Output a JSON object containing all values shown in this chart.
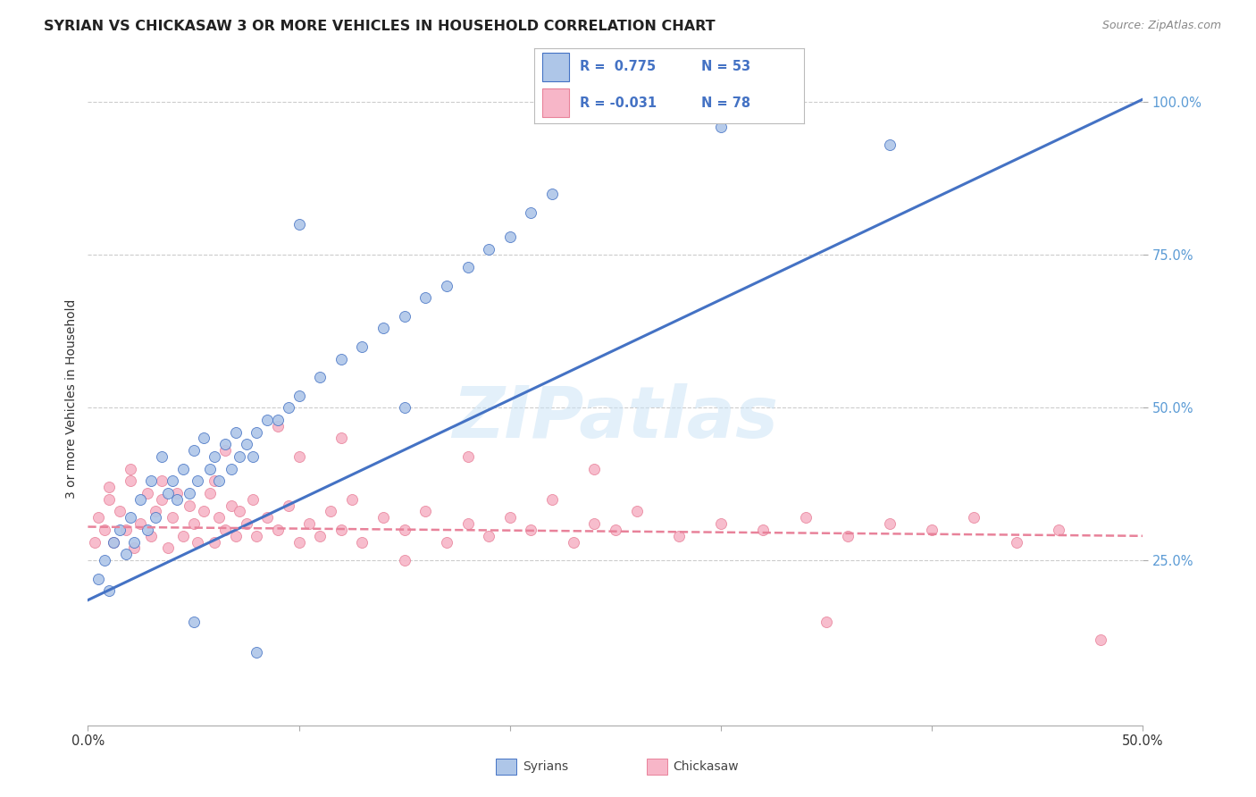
{
  "title": "SYRIAN VS CHICKASAW 3 OR MORE VEHICLES IN HOUSEHOLD CORRELATION CHART",
  "source": "Source: ZipAtlas.com",
  "ylabel": "3 or more Vehicles in Household",
  "xlim": [
    0.0,
    0.5
  ],
  "ylim": [
    -0.02,
    1.05
  ],
  "syrian_color": "#aec6e8",
  "chickasaw_color": "#f7b6c8",
  "syrian_line_color": "#4472c4",
  "chickasaw_line_color": "#e8829a",
  "watermark": "ZIPatlas",
  "syrian_scatter_x": [
    0.005,
    0.008,
    0.01,
    0.012,
    0.015,
    0.018,
    0.02,
    0.022,
    0.025,
    0.028,
    0.03,
    0.032,
    0.035,
    0.038,
    0.04,
    0.042,
    0.045,
    0.048,
    0.05,
    0.052,
    0.055,
    0.058,
    0.06,
    0.062,
    0.065,
    0.068,
    0.07,
    0.072,
    0.075,
    0.078,
    0.08,
    0.085,
    0.09,
    0.095,
    0.1,
    0.11,
    0.12,
    0.13,
    0.14,
    0.15,
    0.16,
    0.17,
    0.18,
    0.19,
    0.2,
    0.21,
    0.22,
    0.05,
    0.08,
    0.1,
    0.15,
    0.3,
    0.38
  ],
  "syrian_scatter_y": [
    0.22,
    0.25,
    0.2,
    0.28,
    0.3,
    0.26,
    0.32,
    0.28,
    0.35,
    0.3,
    0.38,
    0.32,
    0.42,
    0.36,
    0.38,
    0.35,
    0.4,
    0.36,
    0.43,
    0.38,
    0.45,
    0.4,
    0.42,
    0.38,
    0.44,
    0.4,
    0.46,
    0.42,
    0.44,
    0.42,
    0.46,
    0.48,
    0.48,
    0.5,
    0.52,
    0.55,
    0.58,
    0.6,
    0.63,
    0.65,
    0.68,
    0.7,
    0.73,
    0.76,
    0.78,
    0.82,
    0.85,
    0.15,
    0.1,
    0.8,
    0.5,
    0.96,
    0.93
  ],
  "chickasaw_scatter_x": [
    0.003,
    0.005,
    0.008,
    0.01,
    0.012,
    0.015,
    0.018,
    0.02,
    0.022,
    0.025,
    0.028,
    0.03,
    0.032,
    0.035,
    0.038,
    0.04,
    0.042,
    0.045,
    0.048,
    0.05,
    0.052,
    0.055,
    0.058,
    0.06,
    0.062,
    0.065,
    0.068,
    0.07,
    0.072,
    0.075,
    0.078,
    0.08,
    0.085,
    0.09,
    0.095,
    0.1,
    0.105,
    0.11,
    0.115,
    0.12,
    0.125,
    0.13,
    0.14,
    0.15,
    0.16,
    0.17,
    0.18,
    0.19,
    0.2,
    0.21,
    0.22,
    0.23,
    0.24,
    0.25,
    0.26,
    0.28,
    0.3,
    0.32,
    0.34,
    0.36,
    0.38,
    0.4,
    0.42,
    0.44,
    0.46,
    0.065,
    0.09,
    0.12,
    0.18,
    0.24,
    0.01,
    0.02,
    0.035,
    0.06,
    0.1,
    0.15,
    0.35,
    0.48
  ],
  "chickasaw_scatter_y": [
    0.28,
    0.32,
    0.3,
    0.35,
    0.28,
    0.33,
    0.3,
    0.38,
    0.27,
    0.31,
    0.36,
    0.29,
    0.33,
    0.38,
    0.27,
    0.32,
    0.36,
    0.29,
    0.34,
    0.31,
    0.28,
    0.33,
    0.36,
    0.28,
    0.32,
    0.3,
    0.34,
    0.29,
    0.33,
    0.31,
    0.35,
    0.29,
    0.32,
    0.3,
    0.34,
    0.28,
    0.31,
    0.29,
    0.33,
    0.3,
    0.35,
    0.28,
    0.32,
    0.3,
    0.33,
    0.28,
    0.31,
    0.29,
    0.32,
    0.3,
    0.35,
    0.28,
    0.31,
    0.3,
    0.33,
    0.29,
    0.31,
    0.3,
    0.32,
    0.29,
    0.31,
    0.3,
    0.32,
    0.28,
    0.3,
    0.43,
    0.47,
    0.45,
    0.42,
    0.4,
    0.37,
    0.4,
    0.35,
    0.38,
    0.42,
    0.25,
    0.15,
    0.12
  ],
  "syrian_line_x": [
    0.0,
    0.5
  ],
  "syrian_line_y": [
    0.185,
    1.005
  ],
  "chickasaw_line_x": [
    0.0,
    0.5
  ],
  "chickasaw_line_y": [
    0.305,
    0.29
  ],
  "background_color": "#ffffff",
  "grid_color": "#cccccc",
  "title_fontsize": 11.5,
  "axis_label_fontsize": 10,
  "tick_fontsize": 10.5,
  "right_tick_color": "#5b9bd5"
}
